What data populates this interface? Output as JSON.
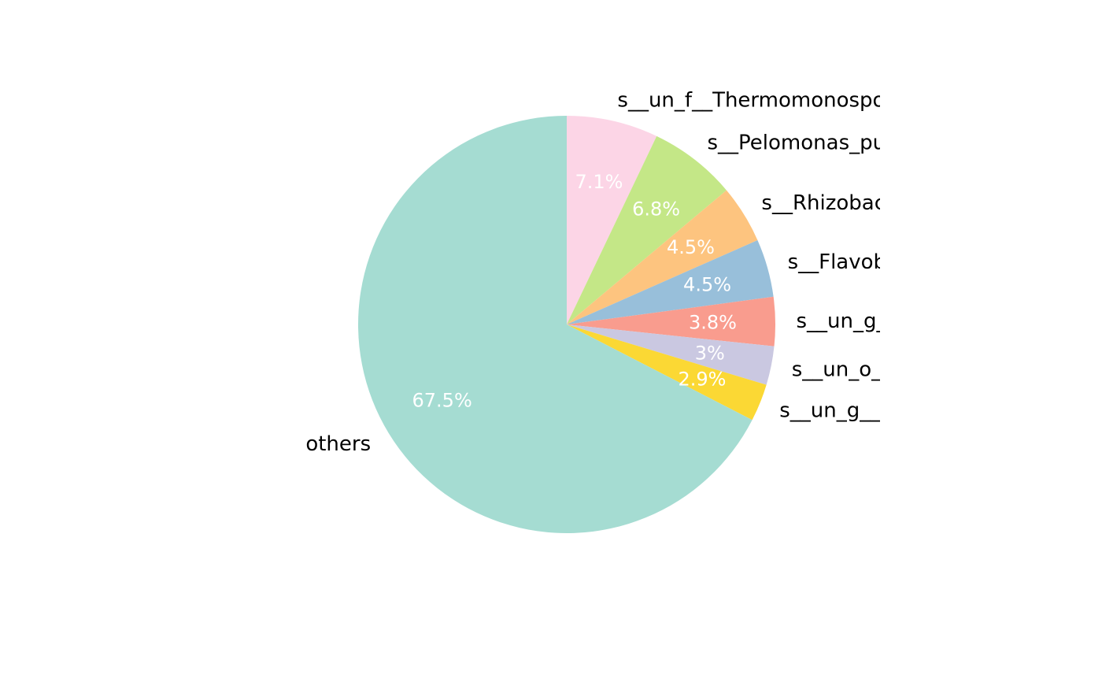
{
  "chart_data": {
    "type": "pie",
    "start": "top",
    "direction": "clockwise",
    "legend": "none",
    "slices": [
      {
        "label": "s__un_f__Thermomonosporaceae",
        "value": 7.1,
        "pct_label": "7.1%",
        "color": "#FCD5E6"
      },
      {
        "label": "s__Pelomonas_puraquae",
        "value": 6.8,
        "pct_label": "6.8%",
        "color": "#C4E787"
      },
      {
        "label": "s__Rhizobacter_bergeri",
        "value": 4.5,
        "pct_label": "4.5%",
        "color": "#FDC47F"
      },
      {
        "label": "s__Flavobacterium_t",
        "value": 4.5,
        "pct_label": "4.5%",
        "color": "#98BFDA"
      },
      {
        "label": "s__un_g__Rhizobacter",
        "value": 3.8,
        "pct_label": "3.8%",
        "color": "#F99C8E"
      },
      {
        "label": "s__un_o__Burkholderiales",
        "value": 3.0,
        "pct_label": "3%",
        "color": "#CAC8E1"
      },
      {
        "label": "s__un_g__Streptomyces",
        "value": 2.9,
        "pct_label": "2.9%",
        "color": "#FBD834"
      },
      {
        "label": "others",
        "value": 67.5,
        "pct_label": "67.5%",
        "color": "#A5DCD2"
      }
    ]
  }
}
